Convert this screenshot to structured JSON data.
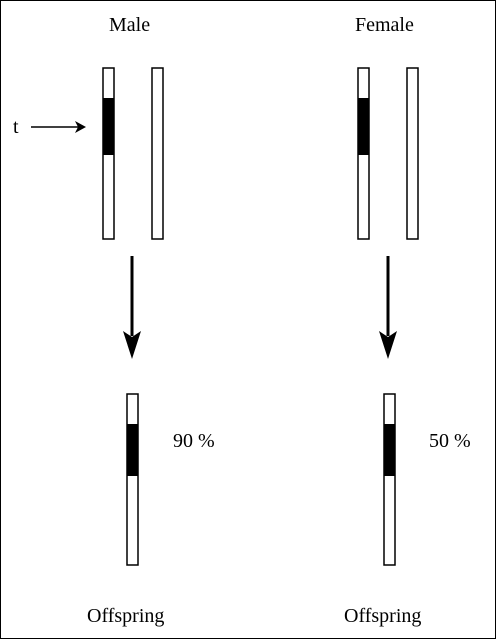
{
  "parents": {
    "male": {
      "title": "Male"
    },
    "female": {
      "title": "Female"
    }
  },
  "marker": {
    "label": "t"
  },
  "offspring": {
    "male": {
      "label": "Offspring",
      "percent": "90 %"
    },
    "female": {
      "label": "Offspring",
      "percent": "50 %"
    }
  },
  "colors": {
    "ink": "#000000",
    "paper": "#ffffff"
  }
}
